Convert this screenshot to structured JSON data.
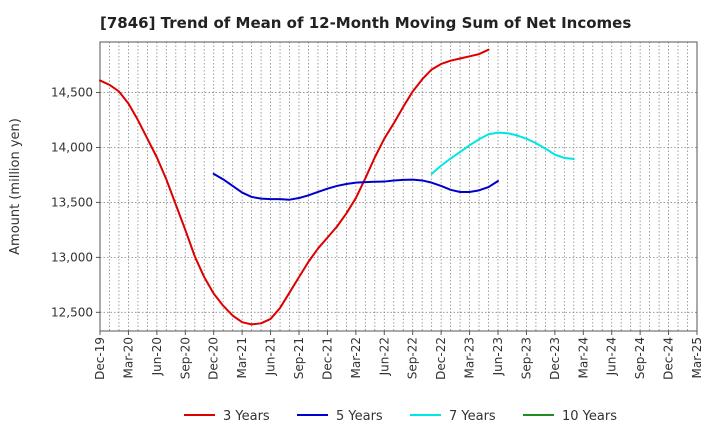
{
  "chart_data": {
    "type": "line",
    "title": "[7846]  Trend of Mean of 12-Month Moving Sum of Net Incomes",
    "ylabel": "Amount (million yen)",
    "xlabel": "",
    "x_ticks": [
      "Dec-19",
      "Mar-20",
      "Jun-20",
      "Sep-20",
      "Dec-20",
      "Mar-21",
      "Jun-21",
      "Sep-21",
      "Dec-21",
      "Mar-22",
      "Jun-22",
      "Sep-22",
      "Dec-22",
      "Mar-23",
      "Jun-23",
      "Sep-23",
      "Dec-23",
      "Mar-24",
      "Jun-24",
      "Sep-24",
      "Dec-24",
      "Mar-25"
    ],
    "y_ticks": [
      12500,
      13000,
      13500,
      14000,
      14500
    ],
    "y_tick_labels": [
      "12,500",
      "13,000",
      "13,500",
      "14,000",
      "14,500"
    ],
    "ylim": [
      12330,
      14960
    ],
    "grid": true,
    "legend_position": "bottom",
    "series": [
      {
        "name": "3 Years",
        "color": "#dd0000",
        "start_index": 0,
        "values": [
          14610,
          14570,
          14510,
          14400,
          14250,
          14080,
          13910,
          13710,
          13480,
          13250,
          13010,
          12820,
          12670,
          12560,
          12470,
          12410,
          12390,
          12400,
          12440,
          12540,
          12680,
          12820,
          12960,
          13080,
          13180,
          13280,
          13400,
          13540,
          13720,
          13910,
          14080,
          14220,
          14370,
          14510,
          14620,
          14710,
          14760,
          14790,
          14810,
          14830,
          14850,
          14890
        ]
      },
      {
        "name": "5 Years",
        "color": "#0000cc",
        "start_index": 12,
        "values": [
          13760,
          13710,
          13650,
          13590,
          13550,
          13535,
          13530,
          13530,
          13525,
          13540,
          13565,
          13595,
          13625,
          13650,
          13668,
          13680,
          13685,
          13688,
          13690,
          13700,
          13705,
          13708,
          13700,
          13680,
          13650,
          13615,
          13595,
          13595,
          13610,
          13640,
          13695
        ]
      },
      {
        "name": "7 Years",
        "color": "#00e5e5",
        "start_index": 35,
        "values": [
          13760,
          13835,
          13900,
          13960,
          14020,
          14075,
          14120,
          14135,
          14130,
          14110,
          14080,
          14040,
          13990,
          13935,
          13905,
          13895
        ]
      },
      {
        "name": "10 Years",
        "color": "#228b22",
        "start_index": 0,
        "values": []
      }
    ]
  }
}
